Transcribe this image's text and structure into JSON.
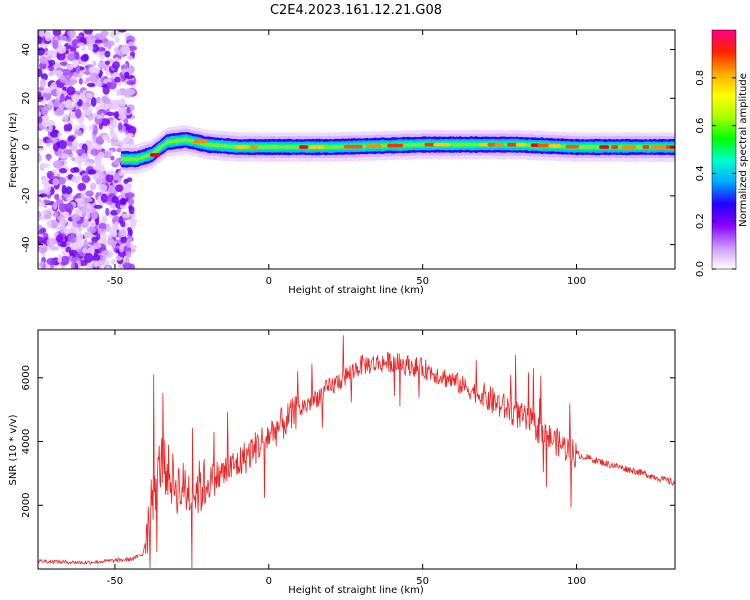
{
  "title": "C2E4.2023.161.12.21.G08",
  "chart_data": [
    {
      "type": "heatmap",
      "xlabel": "Height of straight line (km)",
      "ylabel": "Frequency (Hz)",
      "xlim": [
        -75,
        132
      ],
      "ylim": [
        -50,
        48
      ],
      "xticks": [
        -50,
        0,
        50,
        100
      ],
      "yticks": [
        -40,
        -20,
        0,
        20,
        40
      ],
      "colorbar": {
        "label": "Normalized spectral amplitude",
        "range": [
          0.0,
          1.0
        ],
        "ticks": [
          0.0,
          0.2,
          0.4,
          0.6,
          0.8
        ],
        "colormap": [
          "#ffffff",
          "#cc99ff",
          "#8800ff",
          "#2200ff",
          "#00aaff",
          "#00ffcc",
          "#00ff00",
          "#aaff00",
          "#ffff00",
          "#ffaa00",
          "#ff2200",
          "#ff0088"
        ]
      },
      "ridge": {
        "description_points": [
          {
            "x": -48,
            "y": -5
          },
          {
            "x": -43,
            "y": -5
          },
          {
            "x": -38,
            "y": -3
          },
          {
            "x": -33,
            "y": 2
          },
          {
            "x": -27,
            "y": 3
          },
          {
            "x": -20,
            "y": 1
          },
          {
            "x": -10,
            "y": 0
          },
          {
            "x": 0,
            "y": 0
          },
          {
            "x": 20,
            "y": 0
          },
          {
            "x": 50,
            "y": 1
          },
          {
            "x": 80,
            "y": 1
          },
          {
            "x": 100,
            "y": 0
          },
          {
            "x": 132,
            "y": 0
          }
        ]
      },
      "noise_region_x": [
        -75,
        -48
      ]
    },
    {
      "type": "line",
      "xlabel": "Height of straight line (km)",
      "ylabel": "SNR (10 * v/v)",
      "xlim": [
        -75,
        132
      ],
      "ylim": [
        0,
        7500
      ],
      "xticks": [
        -50,
        0,
        50,
        100
      ],
      "yticks": [
        2000,
        4000,
        6000
      ],
      "series": [
        {
          "color": "#ee2222",
          "envelope_x": [
            -75,
            -60,
            -45,
            -41,
            -40,
            -38,
            -35,
            -30,
            -25,
            -20,
            -10,
            0,
            10,
            20,
            30,
            40,
            50,
            60,
            70,
            80,
            85,
            90,
            95,
            100,
            110,
            120,
            132
          ],
          "envelope_y": [
            250,
            200,
            300,
            450,
            900,
            2200,
            3400,
            2600,
            2400,
            2700,
            3300,
            4200,
            5000,
            5700,
            6400,
            6500,
            6300,
            5900,
            5400,
            4900,
            4600,
            4200,
            3900,
            3600,
            3300,
            3050,
            2700
          ]
        }
      ]
    }
  ]
}
